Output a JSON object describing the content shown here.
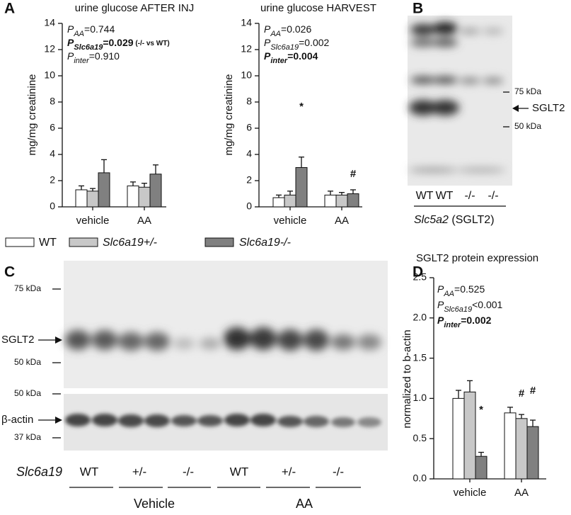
{
  "panel_labels": [
    "A",
    "B",
    "C",
    "D"
  ],
  "chart_data": [
    {
      "type": "bar",
      "title": "urine glucose AFTER INJ",
      "y_label": "mg/mg creatinine",
      "categories": [
        "vehicle",
        "AA"
      ],
      "series": [
        {
          "name": "WT",
          "color": "#ffffff",
          "values": [
            1.3,
            1.6
          ],
          "errors": [
            0.3,
            0.3
          ]
        },
        {
          "name": "Slc6a19+/-",
          "color": "#c8c8c8",
          "values": [
            1.2,
            1.5
          ],
          "errors": [
            0.2,
            0.3
          ]
        },
        {
          "name": "Slc6a19-/-",
          "color": "#808080",
          "values": [
            2.6,
            2.5
          ],
          "errors": [
            1.0,
            0.7
          ]
        }
      ],
      "ylim": [
        0,
        14
      ],
      "yticks": [
        0,
        2,
        4,
        6,
        8,
        10,
        12,
        14
      ],
      "stats": [
        {
          "p": "P",
          "sub": "AA",
          "value": "=0.744",
          "bold": false
        },
        {
          "p": "P",
          "sub": "Slc6a19",
          "value": "=0.029",
          "note": " (-/- vs WT)",
          "bold": true
        },
        {
          "p": "P",
          "sub": "inter",
          "value": "=0.910",
          "bold": false
        }
      ],
      "annotations": []
    },
    {
      "type": "bar",
      "title": "urine glucose HARVEST",
      "y_label": "mg/mg creatinine",
      "categories": [
        "vehicle",
        "AA"
      ],
      "series": [
        {
          "color": "#ffffff",
          "values": [
            0.7,
            0.9
          ],
          "errors": [
            0.2,
            0.3
          ]
        },
        {
          "color": "#c8c8c8",
          "values": [
            0.9,
            0.9
          ],
          "errors": [
            0.3,
            0.2
          ]
        },
        {
          "color": "#808080",
          "values": [
            3.0,
            1.0
          ],
          "errors": [
            0.8,
            0.3
          ]
        }
      ],
      "ylim": [
        0,
        14
      ],
      "yticks": [
        0,
        2,
        4,
        6,
        8,
        10,
        12,
        14
      ],
      "stats": [
        {
          "p": "P",
          "sub": "AA",
          "value": "=0.026",
          "bold": false
        },
        {
          "p": "P",
          "sub": "Slc6a19",
          "value": "=0.002",
          "bold": false
        },
        {
          "p": "P",
          "sub": "inter",
          "value": "=0.004",
          "bold": true
        }
      ],
      "annotations": [
        "*",
        "#"
      ]
    },
    {
      "type": "bar",
      "title": "SGLT2 protein expression",
      "y_label": "normalized to b-actin",
      "categories": [
        "vehicle",
        "AA"
      ],
      "series": [
        {
          "color": "#ffffff",
          "values": [
            1.0,
            0.82
          ],
          "errors": [
            0.1,
            0.07
          ]
        },
        {
          "color": "#c8c8c8",
          "values": [
            1.08,
            0.75
          ],
          "errors": [
            0.14,
            0.05
          ]
        },
        {
          "color": "#808080",
          "values": [
            0.28,
            0.65
          ],
          "errors": [
            0.05,
            0.08
          ]
        }
      ],
      "ylim": [
        0,
        2.5
      ],
      "yticks": [
        {
          "value": 0,
          "label": "0.0"
        },
        0.5,
        {
          "value": 1,
          "label": "1.0"
        },
        1.5,
        {
          "value": 2,
          "label": "2.0"
        },
        2.5
      ],
      "stats": [
        {
          "p": "P",
          "sub": "AA",
          "value": "=0.525",
          "bold": false
        },
        {
          "p": "P",
          "sub": "Slc6a19",
          "value": "<0.001",
          "bold": false
        },
        {
          "p": "P",
          "sub": "inter",
          "value": "=0.002",
          "bold": true
        }
      ],
      "annotations": [
        "*",
        "#",
        "#"
      ]
    }
  ],
  "blot_b": {
    "markers": [
      "75 kDa",
      "50 kDa"
    ],
    "band": "SGLT2",
    "lanes": [
      "WT",
      "WT",
      "-/-",
      "-/-"
    ],
    "gene": "Slc5a2",
    "protein": " (SGLT2)"
  },
  "blot_c": {
    "markers_top": [
      "75 kDa",
      "50 kDa"
    ],
    "band_top": "SGLT2",
    "markers_bottom": [
      "50 kDa",
      "37 kDa"
    ],
    "band_bottom": "β-actin",
    "gene": "Slc6a19",
    "lanes": [
      "WT",
      "+/-",
      "-/-",
      "WT",
      "+/-",
      "-/-"
    ],
    "groups": [
      "Vehicle",
      "AA"
    ]
  }
}
